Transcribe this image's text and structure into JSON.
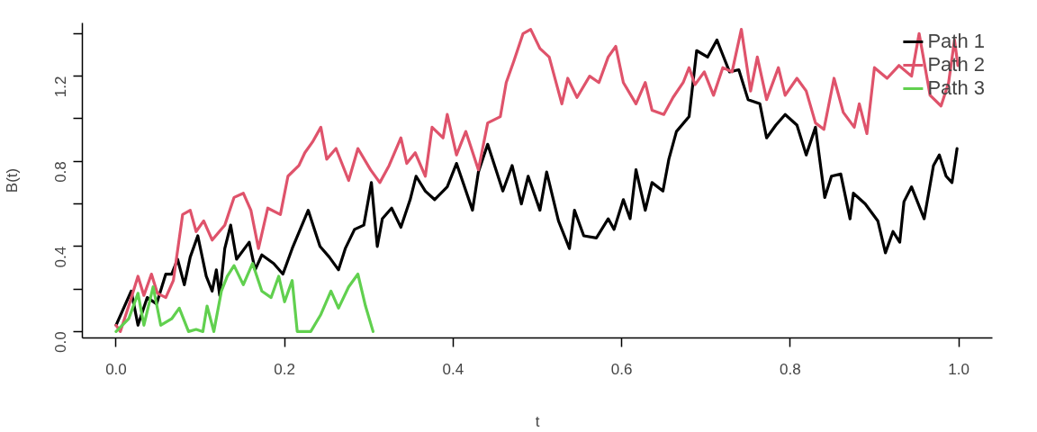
{
  "chart_data": {
    "type": "line",
    "xlabel": "t",
    "ylabel": "B(t)",
    "xlim": [
      -0.04,
      1.04
    ],
    "ylim": [
      -0.03,
      1.45
    ],
    "xticks": [
      {
        "value": 0,
        "label": "0.0"
      },
      {
        "value": 0.2,
        "label": "0.2"
      },
      {
        "value": 0.4,
        "label": "0.4"
      },
      {
        "value": 0.6,
        "label": "0.6"
      },
      {
        "value": 0.8,
        "label": "0.8"
      },
      {
        "value": 1.0,
        "label": "1.0"
      }
    ],
    "yticks": [
      {
        "value": 0,
        "label": "0.0"
      },
      {
        "value": 0.2,
        "label": null
      },
      {
        "value": 0.4,
        "label": "0.4"
      },
      {
        "value": 0.6,
        "label": null
      },
      {
        "value": 0.8,
        "label": "0.8"
      },
      {
        "value": 1.0,
        "label": null
      },
      {
        "value": 1.2,
        "label": "1.2"
      },
      {
        "value": 1.4,
        "label": null
      }
    ],
    "grid": false,
    "legend": "top right",
    "marker": "none",
    "line_style": "solid",
    "series": [
      {
        "name": "Path 1",
        "color": "#000000",
        "x": [
          0,
          0.018,
          0.026,
          0.037,
          0.048,
          0.059,
          0.066,
          0.073,
          0.081,
          0.088,
          0.097,
          0.107,
          0.114,
          0.119,
          0.123,
          0.129,
          0.136,
          0.143,
          0.158,
          0.165,
          0.173,
          0.187,
          0.198,
          0.209,
          0.228,
          0.242,
          0.253,
          0.264,
          0.272,
          0.283,
          0.294,
          0.303,
          0.31,
          0.316,
          0.327,
          0.338,
          0.349,
          0.356,
          0.367,
          0.378,
          0.393,
          0.404,
          0.423,
          0.43,
          0.441,
          0.459,
          0.47,
          0.481,
          0.489,
          0.503,
          0.511,
          0.525,
          0.538,
          0.544,
          0.555,
          0.57,
          0.584,
          0.591,
          0.602,
          0.61,
          0.617,
          0.628,
          0.636,
          0.649,
          0.656,
          0.665,
          0.68,
          0.689,
          0.702,
          0.713,
          0.72,
          0.728,
          0.739,
          0.75,
          0.764,
          0.772,
          0.783,
          0.794,
          0.808,
          0.819,
          0.83,
          0.841,
          0.849,
          0.86,
          0.871,
          0.875,
          0.889,
          0.904,
          0.913,
          0.922,
          0.93,
          0.935,
          0.944,
          0.959,
          0.97,
          0.977,
          0.985,
          0.992,
          0.998
        ],
        "values": [
          0.03,
          0.19,
          0.03,
          0.16,
          0.13,
          0.27,
          0.27,
          0.34,
          0.22,
          0.35,
          0.45,
          0.26,
          0.19,
          0.29,
          0.17,
          0.39,
          0.5,
          0.34,
          0.42,
          0.29,
          0.36,
          0.32,
          0.27,
          0.39,
          0.57,
          0.4,
          0.35,
          0.29,
          0.39,
          0.48,
          0.5,
          0.7,
          0.4,
          0.53,
          0.58,
          0.49,
          0.62,
          0.73,
          0.66,
          0.62,
          0.68,
          0.79,
          0.57,
          0.75,
          0.88,
          0.66,
          0.78,
          0.6,
          0.73,
          0.57,
          0.75,
          0.52,
          0.39,
          0.57,
          0.45,
          0.44,
          0.53,
          0.48,
          0.62,
          0.53,
          0.76,
          0.57,
          0.7,
          0.66,
          0.81,
          0.94,
          1.01,
          1.32,
          1.29,
          1.37,
          1.3,
          1.22,
          1.23,
          1.09,
          1.07,
          0.91,
          0.97,
          1.02,
          0.97,
          0.83,
          0.96,
          0.63,
          0.73,
          0.74,
          0.53,
          0.65,
          0.6,
          0.52,
          0.37,
          0.47,
          0.42,
          0.61,
          0.68,
          0.53,
          0.78,
          0.83,
          0.73,
          0.7,
          0.86
        ]
      },
      {
        "name": "Path 2",
        "color": "#df536b",
        "x": [
          0,
          0.005,
          0.015,
          0.026,
          0.033,
          0.042,
          0.049,
          0.059,
          0.068,
          0.079,
          0.088,
          0.095,
          0.104,
          0.114,
          0.129,
          0.14,
          0.151,
          0.16,
          0.169,
          0.18,
          0.195,
          0.204,
          0.217,
          0.224,
          0.233,
          0.243,
          0.25,
          0.261,
          0.276,
          0.287,
          0.302,
          0.313,
          0.324,
          0.338,
          0.345,
          0.355,
          0.367,
          0.375,
          0.388,
          0.393,
          0.404,
          0.415,
          0.43,
          0.441,
          0.456,
          0.463,
          0.472,
          0.483,
          0.492,
          0.503,
          0.514,
          0.529,
          0.536,
          0.547,
          0.562,
          0.573,
          0.584,
          0.593,
          0.602,
          0.617,
          0.628,
          0.636,
          0.65,
          0.661,
          0.673,
          0.68,
          0.687,
          0.698,
          0.709,
          0.72,
          0.731,
          0.742,
          0.753,
          0.761,
          0.772,
          0.786,
          0.794,
          0.808,
          0.819,
          0.83,
          0.84,
          0.852,
          0.863,
          0.876,
          0.882,
          0.891,
          0.9,
          0.915,
          0.929,
          0.944,
          0.953,
          0.966,
          0.979,
          0.988,
          0.995,
          0.999
        ],
        "values": [
          0.03,
          0.0,
          0.12,
          0.26,
          0.17,
          0.27,
          0.18,
          0.16,
          0.24,
          0.55,
          0.57,
          0.47,
          0.52,
          0.43,
          0.5,
          0.63,
          0.65,
          0.57,
          0.39,
          0.58,
          0.55,
          0.73,
          0.78,
          0.84,
          0.89,
          0.96,
          0.81,
          0.86,
          0.71,
          0.86,
          0.76,
          0.7,
          0.78,
          0.91,
          0.79,
          0.84,
          0.73,
          0.96,
          0.91,
          1.02,
          0.83,
          0.94,
          0.76,
          0.98,
          1.01,
          1.17,
          1.27,
          1.4,
          1.42,
          1.33,
          1.29,
          1.07,
          1.19,
          1.1,
          1.2,
          1.17,
          1.29,
          1.34,
          1.17,
          1.07,
          1.17,
          1.04,
          1.02,
          1.1,
          1.17,
          1.24,
          1.16,
          1.22,
          1.11,
          1.24,
          1.22,
          1.42,
          1.13,
          1.29,
          1.09,
          1.24,
          1.11,
          1.19,
          1.13,
          0.98,
          0.95,
          1.19,
          1.03,
          0.96,
          1.07,
          0.93,
          1.24,
          1.19,
          1.25,
          1.2,
          1.4,
          1.11,
          1.06,
          1.17,
          1.37,
          1.25
        ]
      },
      {
        "name": "Path 3",
        "color": "#61d04f",
        "x": [
          0,
          0.015,
          0.026,
          0.033,
          0.044,
          0.053,
          0.066,
          0.075,
          0.086,
          0.095,
          0.103,
          0.108,
          0.116,
          0.125,
          0.132,
          0.14,
          0.151,
          0.162,
          0.173,
          0.184,
          0.193,
          0.2,
          0.209,
          0.215,
          0.231,
          0.243,
          0.255,
          0.264,
          0.276,
          0.287,
          0.296,
          0.305
        ],
        "values": [
          0.0,
          0.06,
          0.18,
          0.03,
          0.21,
          0.03,
          0.06,
          0.11,
          0.0,
          0.01,
          0.0,
          0.12,
          0.0,
          0.19,
          0.26,
          0.31,
          0.22,
          0.32,
          0.19,
          0.16,
          0.26,
          0.14,
          0.24,
          0.0,
          0.0,
          0.08,
          0.19,
          0.11,
          0.21,
          0.27,
          0.12,
          0.0
        ]
      }
    ]
  }
}
